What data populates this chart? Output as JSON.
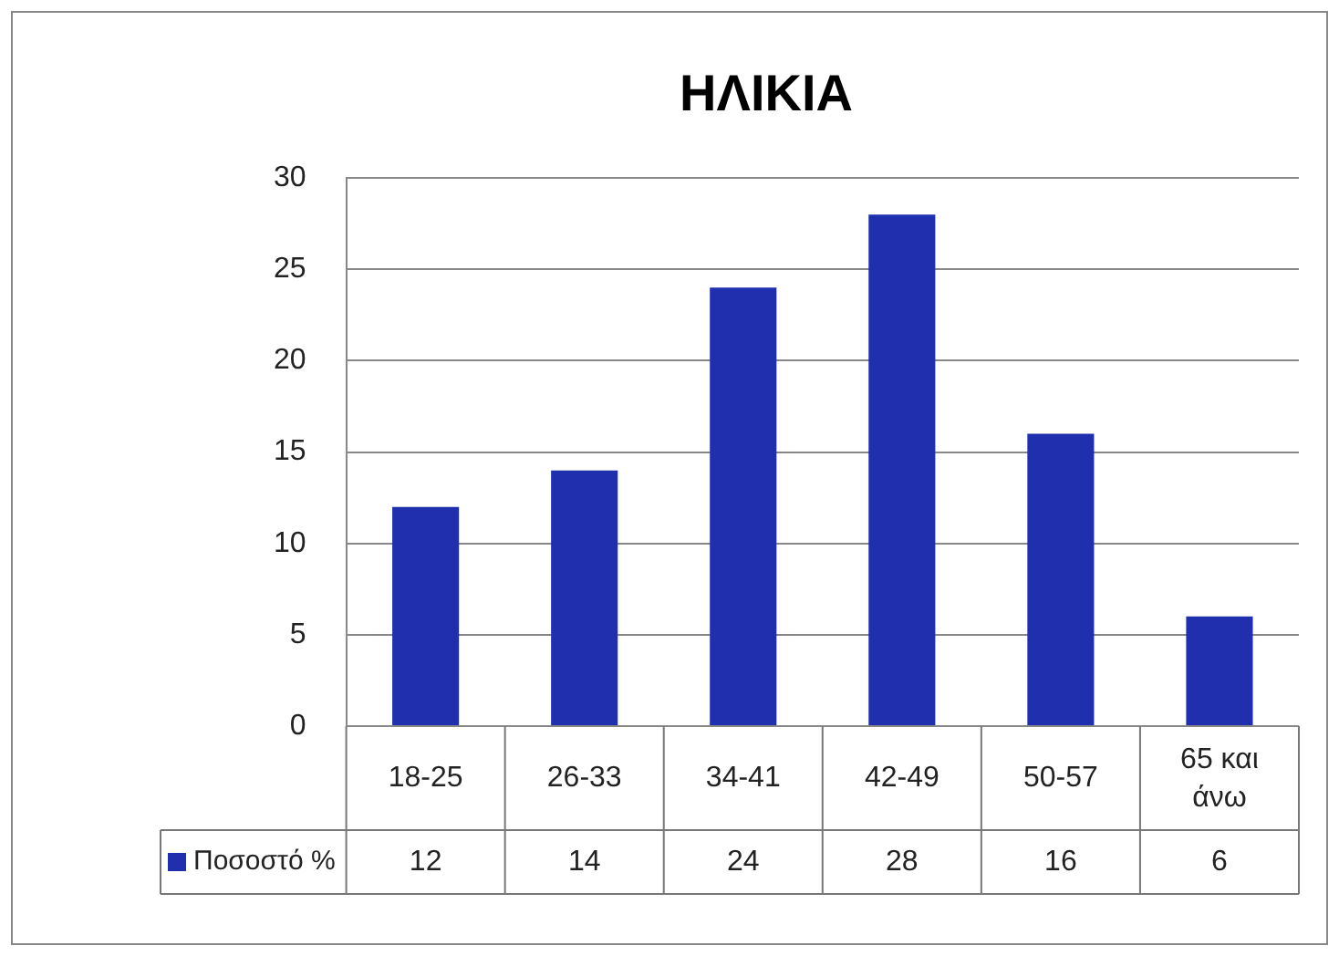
{
  "chart_data": {
    "type": "bar",
    "title": "ΗΛΙΚΙΑ",
    "categories": [
      "18-25",
      "26-33",
      "34-41",
      "42-49",
      "50-57",
      "65 και άνω"
    ],
    "series": [
      {
        "name": "Ποσοστό %",
        "color": "#1f2fae",
        "values": [
          12,
          14,
          24,
          28,
          16,
          6
        ]
      }
    ],
    "ylim": [
      0,
      30
    ],
    "yticks": [
      0,
      5,
      10,
      15,
      20,
      25,
      30
    ],
    "grid": "y",
    "legend": "bottom left",
    "data_labels": true
  }
}
